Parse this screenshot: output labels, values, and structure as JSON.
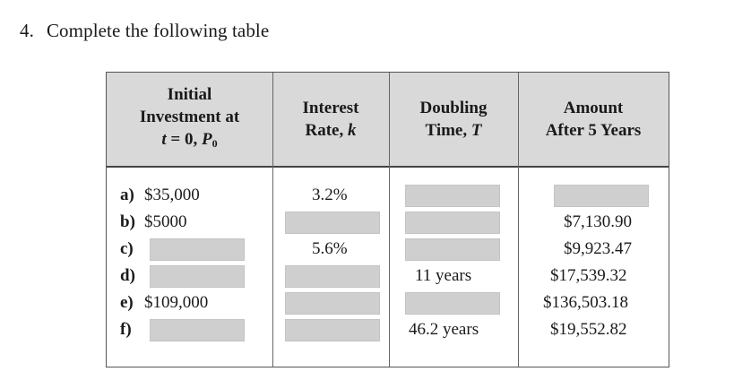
{
  "question": {
    "number": "4.",
    "text": "Complete the following table"
  },
  "table": {
    "headers": {
      "initial_line1": "Initial",
      "initial_line2": "Investment at",
      "initial_line3_t": "t",
      "initial_line3_eq": " = 0, ",
      "initial_line3_P": "P",
      "initial_line3_sub": "0",
      "rate_line1": "Interest",
      "rate_line2": "Rate, ",
      "rate_line2_k": "k",
      "doubling_line1": "Doubling",
      "doubling_line2": "Time, ",
      "doubling_line2_T": "T",
      "amount_line1": "Amount",
      "amount_line2": "After 5 Years"
    },
    "rows": [
      {
        "label": "a)",
        "initial": "$35,000",
        "rate": "3.2%",
        "doubling": "",
        "amount": ""
      },
      {
        "label": "b)",
        "initial": "$5000",
        "rate": "",
        "doubling": "",
        "amount": "$7,130.90"
      },
      {
        "label": "c)",
        "initial": "",
        "rate": "5.6%",
        "doubling": "",
        "amount": "$9,923.47"
      },
      {
        "label": "d)",
        "initial": "",
        "rate": "",
        "doubling": "11 years",
        "amount": "$17,539.32"
      },
      {
        "label": "e)",
        "initial": "$109,000",
        "rate": "",
        "doubling": "",
        "amount": "$136,503.18"
      },
      {
        "label": "f)",
        "initial": "",
        "rate": "",
        "doubling": "46.2 years",
        "amount": "$19,552.82"
      }
    ]
  }
}
